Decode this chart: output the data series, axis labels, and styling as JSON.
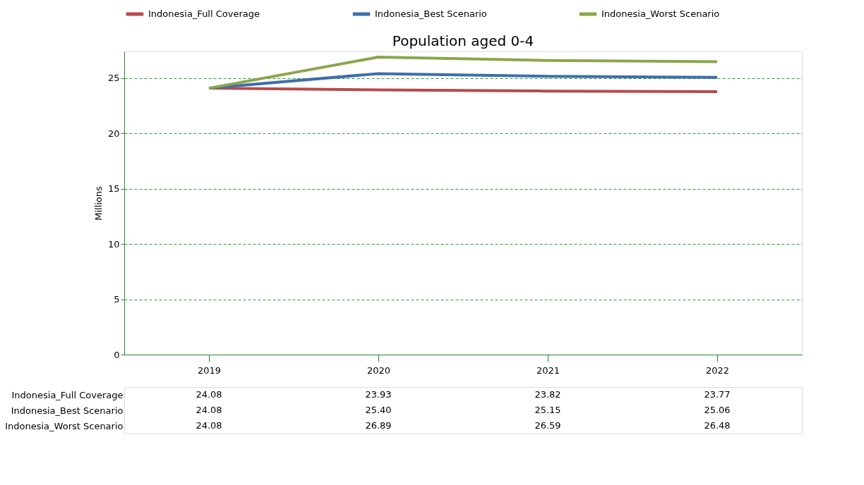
{
  "chart_data": {
    "type": "line",
    "title": "Population aged 0-4",
    "ylabel": "Millions",
    "categories": [
      "2019",
      "2020",
      "2021",
      "2022"
    ],
    "series": [
      {
        "name": "Indonesia_Full Coverage",
        "color": "#b84a4a",
        "values": [
          24.08,
          23.93,
          23.82,
          23.77
        ],
        "value_labels": [
          "24.08",
          "23.93",
          "23.82",
          "23.77"
        ]
      },
      {
        "name": "Indonesia_Best Scenario",
        "color": "#3e6fa8",
        "values": [
          24.08,
          25.4,
          25.15,
          25.06
        ],
        "value_labels": [
          "24.08",
          "25.40",
          "25.15",
          "25.06"
        ]
      },
      {
        "name": "Indonesia_Worst Scenario",
        "color": "#8aa64a",
        "values": [
          24.08,
          26.89,
          26.59,
          26.48
        ],
        "value_labels": [
          "24.08",
          "26.89",
          "26.59",
          "26.48"
        ]
      }
    ],
    "ylim": [
      0,
      27.4
    ],
    "yticks": [
      0,
      5,
      10,
      15,
      20,
      25
    ],
    "grid": "y",
    "legend": "top",
    "marker": "none",
    "line_style": "solid"
  }
}
